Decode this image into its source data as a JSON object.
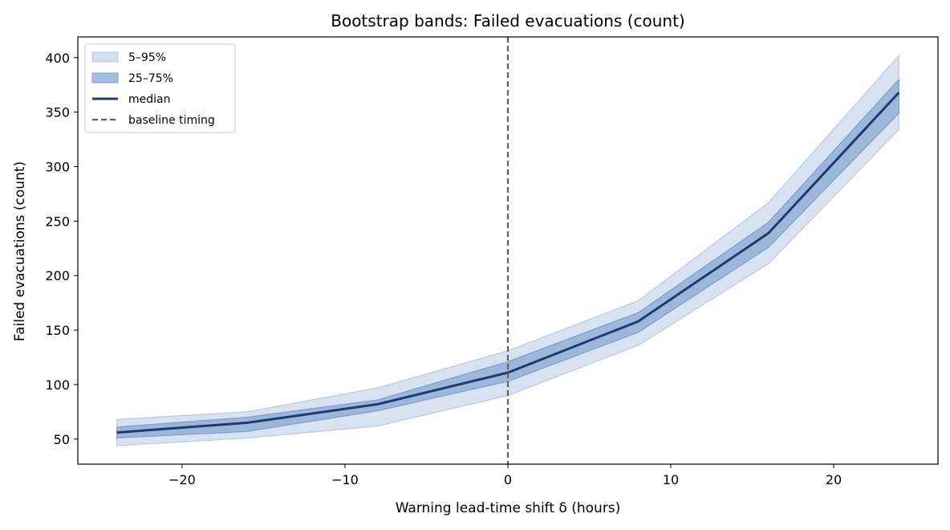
{
  "chart_data": {
    "type": "area",
    "title": "Bootstrap bands: Failed evacuations (count)",
    "xlabel": "Warning lead-time shift δ (hours)",
    "ylabel": "Failed evacuations (count)",
    "xlim": [
      -26.4,
      26.4
    ],
    "ylim": [
      27,
      419
    ],
    "xticks": [
      -20,
      -10,
      0,
      10,
      20
    ],
    "xtick_labels": [
      "−20",
      "−10",
      "0",
      "10",
      "20"
    ],
    "yticks": [
      50,
      100,
      150,
      200,
      250,
      300,
      350,
      400
    ],
    "ytick_labels": [
      "50",
      "100",
      "150",
      "200",
      "250",
      "300",
      "350",
      "400"
    ],
    "grid": false,
    "legend_position": "top-left",
    "x": [
      -24,
      -16,
      -8,
      0,
      8,
      16,
      24
    ],
    "median": [
      56,
      65,
      82,
      111,
      158,
      239,
      368
    ],
    "band_25_75": {
      "lower": [
        51,
        57,
        76,
        103,
        148,
        226,
        349
      ],
      "upper": [
        61,
        70,
        86,
        121,
        166,
        249,
        380
      ]
    },
    "band_5_95": {
      "lower": [
        44,
        51,
        62,
        90,
        136,
        211,
        334
      ],
      "upper": [
        68,
        75,
        97,
        131,
        177,
        267,
        402
      ]
    },
    "baseline_timing_x": 0,
    "legend": [
      {
        "label": "5–95%",
        "kind": "band-outer"
      },
      {
        "label": "25–75%",
        "kind": "band-inner"
      },
      {
        "label": "median",
        "kind": "line"
      },
      {
        "label": "baseline timing",
        "kind": "dashed"
      }
    ],
    "colors": {
      "band_outer": "#b9cae3",
      "band_inner": "#7d9fd0",
      "median": "#1f3a70",
      "baseline": "#606060"
    }
  }
}
